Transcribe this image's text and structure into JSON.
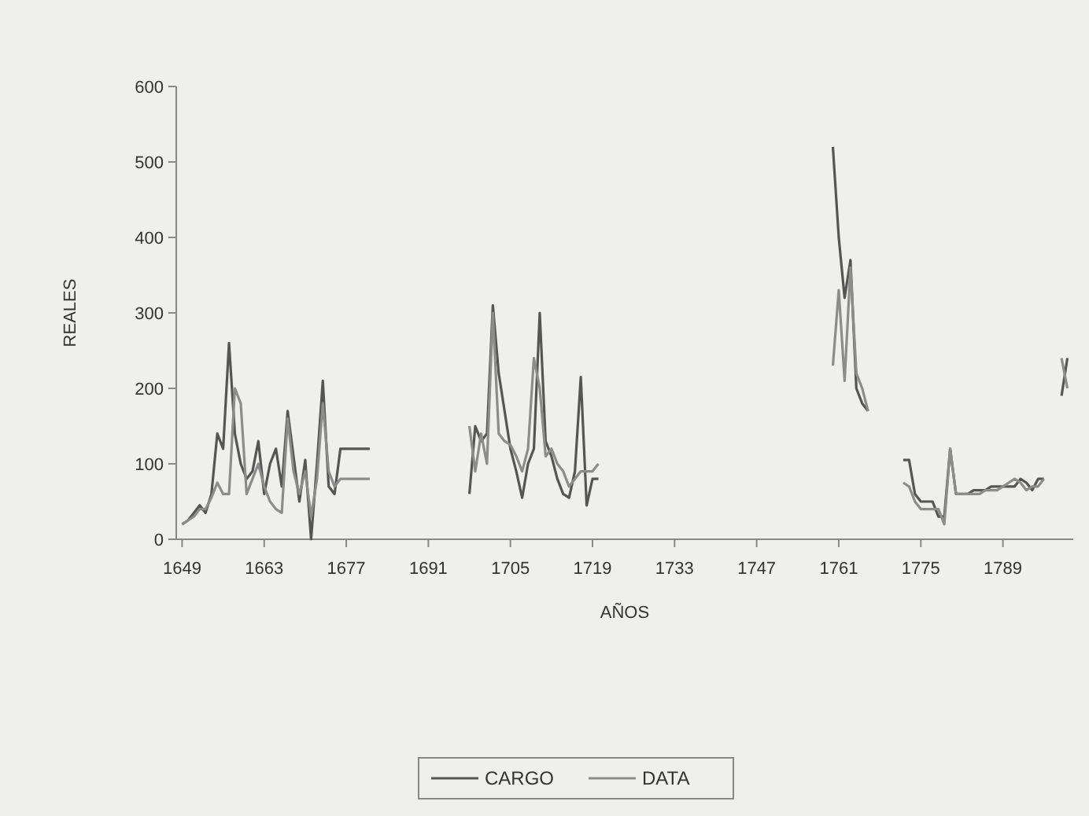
{
  "chart_data": {
    "type": "line",
    "xlabel": "AÑOS",
    "ylabel": "REALES",
    "xlim": [
      1648,
      1801
    ],
    "ylim": [
      0,
      600
    ],
    "xticks": [
      1649,
      1663,
      1677,
      1691,
      1705,
      1719,
      1733,
      1747,
      1761,
      1775,
      1789
    ],
    "yticks": [
      0,
      100,
      200,
      300,
      400,
      500,
      600
    ],
    "grid": false,
    "legend": "bottom",
    "marker": "none",
    "line_style": "solid",
    "series": [
      {
        "name": "CARGO",
        "color": "#555555",
        "x": [
          1649,
          1650,
          1651,
          1652,
          1653,
          1654,
          1655,
          1656,
          1657,
          1658,
          1659,
          1660,
          1661,
          1662,
          1663,
          1664,
          1665,
          1666,
          1667,
          1668,
          1669,
          1670,
          1671,
          1672,
          1673,
          1674,
          1675,
          1676,
          1677,
          1678,
          1679,
          1680,
          1681,
          1690,
          1698,
          1699,
          1700,
          1701,
          1702,
          1703,
          1704,
          1705,
          1706,
          1707,
          1708,
          1709,
          1710,
          1711,
          1712,
          1713,
          1714,
          1715,
          1716,
          1717,
          1718,
          1719,
          1720,
          1740,
          1760,
          1761,
          1762,
          1763,
          1764,
          1765,
          1766,
          1769,
          1772,
          1773,
          1774,
          1775,
          1776,
          1777,
          1778,
          1779,
          1780,
          1781,
          1782,
          1783,
          1784,
          1785,
          1786,
          1787,
          1788,
          1789,
          1790,
          1791,
          1792,
          1793,
          1794,
          1795,
          1796,
          1798,
          1799,
          1800
        ],
        "values": [
          20,
          25,
          35,
          45,
          35,
          60,
          140,
          120,
          260,
          140,
          100,
          80,
          90,
          130,
          60,
          100,
          120,
          70,
          170,
          110,
          50,
          105,
          0,
          100,
          210,
          70,
          60,
          120,
          120,
          120,
          120,
          120,
          120,
          null,
          60,
          150,
          130,
          140,
          310,
          220,
          170,
          120,
          90,
          55,
          100,
          120,
          300,
          130,
          110,
          80,
          60,
          55,
          90,
          215,
          45,
          80,
          80,
          null,
          520,
          400,
          320,
          370,
          200,
          180,
          170,
          null,
          105,
          105,
          60,
          50,
          50,
          50,
          30,
          30,
          120,
          60,
          60,
          60,
          65,
          65,
          65,
          70,
          70,
          70,
          70,
          70,
          80,
          75,
          65,
          80,
          80,
          null,
          190,
          240
        ]
      },
      {
        "name": "DATA",
        "color": "#8c8c8c",
        "x": [
          1649,
          1650,
          1651,
          1652,
          1653,
          1654,
          1655,
          1656,
          1657,
          1658,
          1659,
          1660,
          1661,
          1662,
          1663,
          1664,
          1665,
          1666,
          1667,
          1668,
          1669,
          1670,
          1671,
          1672,
          1673,
          1674,
          1675,
          1676,
          1677,
          1678,
          1679,
          1680,
          1681,
          1690,
          1698,
          1699,
          1700,
          1701,
          1702,
          1703,
          1704,
          1705,
          1706,
          1707,
          1708,
          1709,
          1710,
          1711,
          1712,
          1713,
          1714,
          1715,
          1716,
          1717,
          1718,
          1719,
          1720,
          1740,
          1760,
          1761,
          1762,
          1763,
          1764,
          1765,
          1766,
          1769,
          1772,
          1773,
          1774,
          1775,
          1776,
          1777,
          1778,
          1779,
          1780,
          1781,
          1782,
          1783,
          1784,
          1785,
          1786,
          1787,
          1788,
          1789,
          1790,
          1791,
          1792,
          1793,
          1794,
          1795,
          1796,
          1798,
          1799,
          1800
        ],
        "values": [
          20,
          25,
          30,
          40,
          40,
          55,
          75,
          60,
          60,
          200,
          180,
          60,
          80,
          100,
          70,
          50,
          40,
          35,
          160,
          90,
          60,
          90,
          30,
          80,
          180,
          90,
          70,
          80,
          80,
          80,
          80,
          80,
          80,
          null,
          150,
          90,
          140,
          100,
          300,
          140,
          130,
          125,
          110,
          90,
          120,
          240,
          200,
          110,
          120,
          100,
          90,
          70,
          80,
          90,
          90,
          90,
          100,
          null,
          230,
          330,
          210,
          360,
          220,
          200,
          170,
          null,
          75,
          70,
          50,
          40,
          40,
          40,
          40,
          20,
          120,
          60,
          60,
          60,
          60,
          60,
          65,
          65,
          65,
          70,
          75,
          80,
          75,
          65,
          70,
          70,
          80,
          null,
          240,
          200
        ]
      }
    ]
  }
}
